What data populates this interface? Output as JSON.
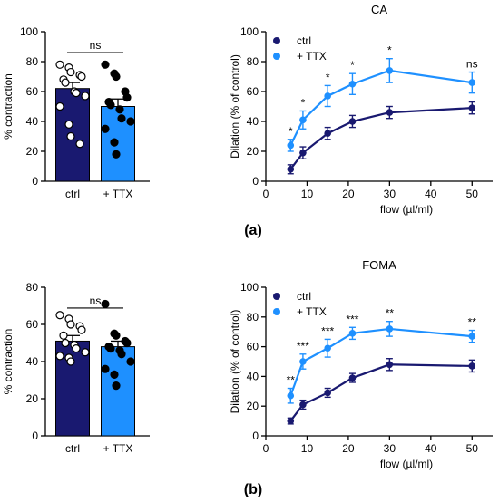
{
  "figure": {
    "label_a": "(a)",
    "label_b": "(b)"
  },
  "colors": {
    "dark": "#191970",
    "light": "#1e90ff"
  },
  "chart_data": [
    {
      "id": "a-bar",
      "type": "bar",
      "ylabel": "% contraction",
      "ylim": [
        0,
        100
      ],
      "yticks": [
        0,
        20,
        40,
        60,
        80,
        100
      ],
      "comparison": "ns",
      "bars": [
        {
          "label": "ctrl",
          "mean": 62,
          "sem": 4,
          "color": "#191970",
          "marker": "open",
          "points": [
            78,
            76,
            73,
            71,
            70,
            68,
            66,
            60,
            59,
            57,
            50,
            38,
            30,
            25
          ]
        },
        {
          "label": "+ TTX",
          "mean": 50,
          "sem": 5,
          "color": "#1e90ff",
          "marker": "filled",
          "points": [
            78,
            72,
            70,
            60,
            56,
            53,
            51,
            48,
            42,
            40,
            35,
            26,
            18
          ]
        }
      ]
    },
    {
      "id": "a-line",
      "type": "line",
      "title": "CA",
      "xlabel": "flow (µl/ml)",
      "ylabel": "Dilation (% of control)",
      "xlim": [
        0,
        55
      ],
      "ylim": [
        0,
        100
      ],
      "xticks": [
        0,
        10,
        20,
        30,
        40,
        50
      ],
      "yticks": [
        0,
        20,
        40,
        60,
        80,
        100
      ],
      "x": [
        6,
        9,
        15,
        21,
        30,
        50
      ],
      "series": [
        {
          "name": "ctrl",
          "color": "#191970",
          "values": [
            8,
            19,
            32,
            40,
            46,
            49
          ],
          "errors": [
            3,
            4,
            4,
            4,
            4,
            4
          ]
        },
        {
          "name": "+ TTX",
          "color": "#1e90ff",
          "values": [
            24,
            41,
            57,
            65,
            74,
            66
          ],
          "errors": [
            4,
            6,
            7,
            7,
            8,
            7
          ]
        }
      ],
      "annotations": [
        "*",
        "*",
        "*",
        "*",
        "*",
        "ns"
      ]
    },
    {
      "id": "b-bar",
      "type": "bar",
      "ylabel": "% contraction",
      "ylim": [
        0,
        80
      ],
      "yticks": [
        0,
        20,
        40,
        60,
        80
      ],
      "comparison": "ns",
      "bars": [
        {
          "label": "ctrl",
          "mean": 51,
          "sem": 3,
          "color": "#191970",
          "marker": "open",
          "points": [
            65,
            63,
            60,
            59,
            57,
            54,
            50,
            49,
            47,
            45,
            43,
            42,
            40
          ]
        },
        {
          "label": "+ TTX",
          "mean": 48,
          "sem": 3,
          "color": "#1e90ff",
          "marker": "filled",
          "points": [
            71,
            55,
            54,
            51,
            50,
            48,
            47,
            46,
            44,
            40,
            36,
            33,
            27
          ]
        }
      ]
    },
    {
      "id": "b-line",
      "type": "line",
      "title": "FOMA",
      "xlabel": "flow (µl/ml)",
      "ylabel": "Dilation (% of control)",
      "xlim": [
        0,
        55
      ],
      "ylim": [
        0,
        100
      ],
      "xticks": [
        0,
        10,
        20,
        30,
        40,
        50
      ],
      "yticks": [
        0,
        20,
        40,
        60,
        80,
        100
      ],
      "x": [
        6,
        9,
        15,
        21,
        30,
        50
      ],
      "series": [
        {
          "name": "ctrl",
          "color": "#191970",
          "values": [
            10,
            21,
            29,
            39,
            48,
            47
          ],
          "errors": [
            2,
            3,
            3,
            3,
            4,
            4
          ]
        },
        {
          "name": "+ TTX",
          "color": "#1e90ff",
          "values": [
            27,
            50,
            59,
            69,
            72,
            67
          ],
          "errors": [
            5,
            5,
            6,
            4,
            5,
            4
          ]
        }
      ],
      "annotations": [
        "**",
        "***",
        "***",
        "***",
        "**",
        "**"
      ]
    }
  ]
}
